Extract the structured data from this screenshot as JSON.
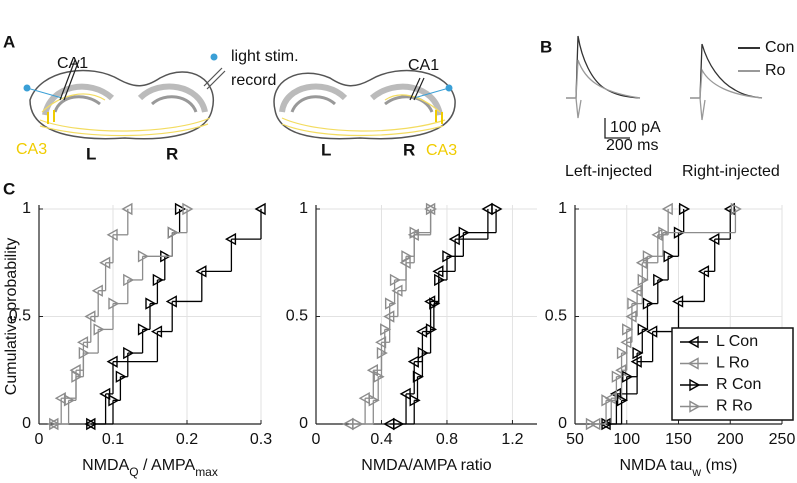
{
  "panel_labels": [
    "A",
    "B",
    "C"
  ],
  "panel_a": {
    "left_ca1": "CA1",
    "right_ca1": "CA1",
    "legend_light": "light stim.",
    "legend_record": "record",
    "left_ca3": "CA3",
    "right_ca3": "CA3",
    "left_l": "L",
    "left_r": "R",
    "right_l": "L",
    "right_r": "R"
  },
  "panel_b": {
    "legend_con": "Con",
    "legend_ro": "Ro",
    "scale_current": "100 pA",
    "scale_time": "200 ms",
    "left_caption": "Left-injected",
    "right_caption": "Right-injected"
  },
  "chart_data": [
    {
      "type": "ecdf",
      "ylabel": "Cumulative probability",
      "xlabel": [
        "NMDA",
        "Q",
        " / AMPA",
        "max"
      ],
      "xlabel_sub": [
        false,
        true,
        false,
        true
      ],
      "xlim": [
        0,
        0.3
      ],
      "xticks": [
        0,
        0.1,
        0.2,
        0.3
      ],
      "ylim": [
        0,
        1
      ],
      "yticks": [
        0,
        0.5,
        1
      ],
      "grid": true,
      "series": [
        {
          "color": "#000000",
          "marker": "left",
          "x": [
            0.07,
            0.09,
            0.1,
            0.16,
            0.18,
            0.22,
            0.26,
            0.3
          ],
          "values": [
            0,
            0.14,
            0.29,
            0.43,
            0.57,
            0.71,
            0.86,
            1
          ]
        },
        {
          "color": "#8c8c8c",
          "marker": "left",
          "x": [
            0.02,
            0.03,
            0.05,
            0.06,
            0.07,
            0.08,
            0.09,
            0.1,
            0.12
          ],
          "values": [
            0,
            0.12,
            0.25,
            0.38,
            0.5,
            0.62,
            0.75,
            0.88,
            1
          ]
        },
        {
          "color": "#000000",
          "marker": "right",
          "x": [
            0.07,
            0.1,
            0.11,
            0.12,
            0.14,
            0.15,
            0.16,
            0.17,
            0.18,
            0.19
          ],
          "values": [
            0,
            0.11,
            0.22,
            0.33,
            0.44,
            0.56,
            0.67,
            0.78,
            0.89,
            1
          ]
        },
        {
          "color": "#8c8c8c",
          "marker": "right",
          "x": [
            0.02,
            0.04,
            0.05,
            0.06,
            0.08,
            0.1,
            0.12,
            0.14,
            0.18,
            0.2
          ],
          "values": [
            0,
            0.11,
            0.22,
            0.33,
            0.44,
            0.56,
            0.67,
            0.78,
            0.89,
            1
          ]
        }
      ]
    },
    {
      "type": "ecdf",
      "xlabel": [
        "NMDA/AMPA ratio"
      ],
      "xlabel_sub": [
        false
      ],
      "xlim": [
        0,
        1.35
      ],
      "xticks": [
        0,
        0.4,
        0.8,
        1.2
      ],
      "ylim": [
        0,
        1
      ],
      "yticks": [
        0,
        0.5,
        1
      ],
      "grid": true,
      "series": [
        {
          "color": "#000000",
          "marker": "left",
          "x": [
            0.45,
            0.55,
            0.6,
            0.65,
            0.7,
            0.75,
            0.85,
            1.05
          ],
          "values": [
            0,
            0.14,
            0.29,
            0.43,
            0.57,
            0.71,
            0.86,
            1
          ]
        },
        {
          "color": "#8c8c8c",
          "marker": "left",
          "x": [
            0.2,
            0.3,
            0.35,
            0.4,
            0.45,
            0.5,
            0.55,
            0.6,
            0.7
          ],
          "values": [
            0,
            0.12,
            0.25,
            0.38,
            0.5,
            0.62,
            0.75,
            0.88,
            1
          ]
        },
        {
          "color": "#000000",
          "marker": "right",
          "x": [
            0.5,
            0.6,
            0.62,
            0.65,
            0.7,
            0.72,
            0.75,
            0.8,
            0.9,
            1.1
          ],
          "values": [
            0,
            0.11,
            0.22,
            0.33,
            0.44,
            0.56,
            0.67,
            0.78,
            0.89,
            1
          ]
        },
        {
          "color": "#8c8c8c",
          "marker": "right",
          "x": [
            0.25,
            0.35,
            0.38,
            0.4,
            0.42,
            0.45,
            0.48,
            0.55,
            0.6,
            0.7
          ],
          "values": [
            0,
            0.11,
            0.22,
            0.33,
            0.44,
            0.56,
            0.67,
            0.78,
            0.89,
            1
          ]
        }
      ]
    },
    {
      "type": "ecdf",
      "xlabel": [
        "NMDA tau",
        "w",
        " (ms)"
      ],
      "xlabel_sub": [
        false,
        true,
        false
      ],
      "xlim": [
        50,
        250
      ],
      "xticks": [
        50,
        100,
        150,
        200,
        250
      ],
      "ylim": [
        0,
        1
      ],
      "yticks": [
        0,
        0.5,
        1
      ],
      "grid": true,
      "legend": "lower right",
      "series": [
        {
          "name": "L Con",
          "color": "#000000",
          "marker": "left",
          "x": [
            80,
            90,
            110,
            125,
            150,
            175,
            185,
            200
          ],
          "values": [
            0,
            0.14,
            0.29,
            0.43,
            0.57,
            0.71,
            0.86,
            1
          ]
        },
        {
          "name": "L Ro",
          "color": "#8c8c8c",
          "marker": "left",
          "x": [
            70,
            85,
            95,
            100,
            105,
            110,
            115,
            130,
            140
          ],
          "values": [
            0,
            0.12,
            0.25,
            0.38,
            0.5,
            0.62,
            0.75,
            0.88,
            1
          ]
        },
        {
          "name": "R Con",
          "color": "#000000",
          "marker": "right",
          "x": [
            80,
            95,
            100,
            110,
            115,
            120,
            130,
            140,
            150,
            155
          ],
          "values": [
            0,
            0.11,
            0.22,
            0.33,
            0.44,
            0.56,
            0.67,
            0.78,
            0.89,
            1
          ]
        },
        {
          "name": "R Ro",
          "color": "#8c8c8c",
          "marker": "right",
          "x": [
            65,
            80,
            90,
            95,
            100,
            105,
            115,
            120,
            135,
            205
          ],
          "values": [
            0,
            0.11,
            0.22,
            0.33,
            0.44,
            0.56,
            0.67,
            0.78,
            0.89,
            1
          ]
        }
      ]
    }
  ]
}
